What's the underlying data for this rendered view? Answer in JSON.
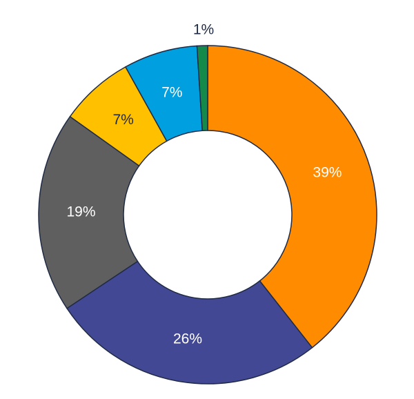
{
  "chart_data": {
    "type": "donut",
    "values": [
      39,
      26,
      19,
      7,
      7,
      1
    ],
    "value_labels": [
      "39%",
      "26%",
      "19%",
      "7%",
      "7%",
      "1%"
    ],
    "colors": [
      "#ff8c00",
      "#434895",
      "#5f5f5f",
      "#ffc000",
      "#00a0e0",
      "#138a4a"
    ]
  }
}
